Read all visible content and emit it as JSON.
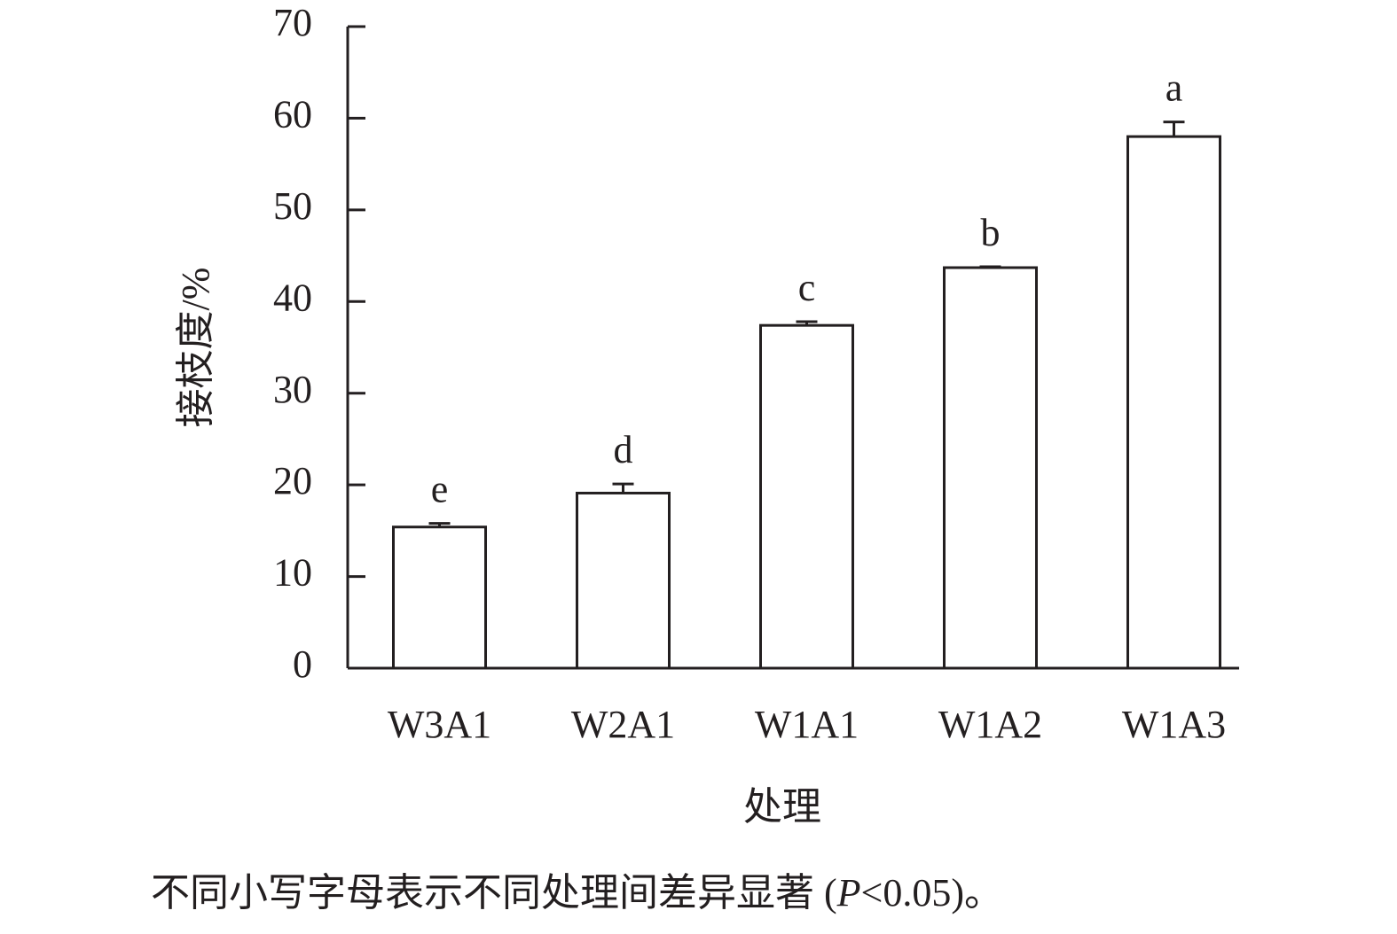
{
  "chart_data": {
    "type": "bar",
    "y_label": "接枝度/%",
    "x_label": "处理",
    "caption_parts": [
      "不同小写字母表示不同处理间差异显著 (",
      "P",
      "<0.05)。"
    ],
    "categories": [
      "W3A1",
      "W2A1",
      "W1A1",
      "W1A2",
      "W1A3"
    ],
    "values": [
      15.4,
      19.1,
      37.4,
      43.7,
      58.0
    ],
    "errors": [
      0.4,
      1.0,
      0.4,
      0.1,
      1.6
    ],
    "letters": [
      "e",
      "d",
      "c",
      "b",
      "a"
    ],
    "color": "#ffffff",
    "ylim": [
      0,
      70
    ],
    "yticks": [
      0,
      10,
      20,
      30,
      40,
      50,
      60,
      70
    ]
  }
}
